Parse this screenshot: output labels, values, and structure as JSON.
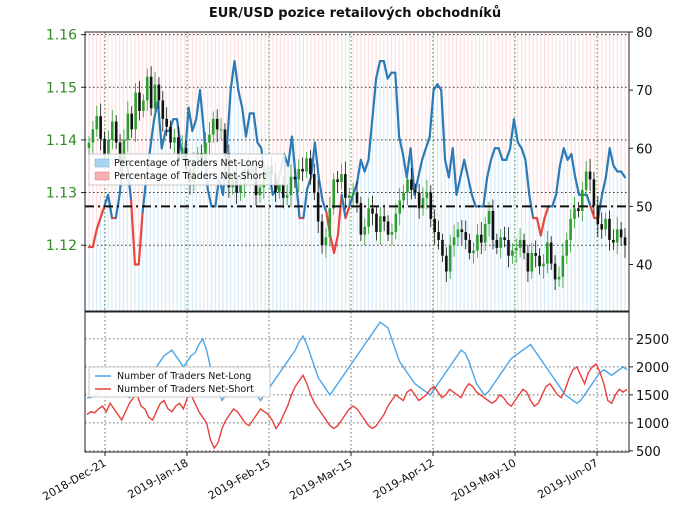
{
  "chart_data": [
    {
      "type": "candlestick",
      "title": "EUR/USD pozice retailových obchodníků",
      "y_left_ticks": [
        "1.12",
        "1.13",
        "1.14",
        "1.15",
        "1.16"
      ],
      "y_left_range": [
        1.1075,
        1.1605
      ],
      "y_right_ticks": [
        "40",
        "50",
        "60",
        "70",
        "80"
      ],
      "y_right_range": [
        32,
        80
      ],
      "reference_line": 50,
      "grid": true,
      "legend": {
        "placement": "center-left",
        "entries": [
          {
            "label": "Percentage of Traders Net-Long",
            "color": "#aad4f0"
          },
          {
            "label": "Percentage of Traders Net-Short",
            "color": "#f5b3b3"
          }
        ]
      },
      "price_close": [
        1.1395,
        1.142,
        1.1445,
        1.1402,
        1.137,
        1.14,
        1.1435,
        1.1395,
        1.136,
        1.14,
        1.145,
        1.142,
        1.149,
        1.1455,
        1.1475,
        1.152,
        1.146,
        1.1505,
        1.1475,
        1.144,
        1.1425,
        1.1395,
        1.1405,
        1.1365,
        1.1385,
        1.1345,
        1.132,
        1.1355,
        1.1375,
        1.135,
        1.1395,
        1.141,
        1.144,
        1.142,
        1.142,
        1.1375,
        1.131,
        1.133,
        1.13,
        1.1315,
        1.1345,
        1.1335,
        1.135,
        1.1295,
        1.131,
        1.133,
        1.135,
        1.1335,
        1.13,
        1.1315,
        1.129,
        1.1295,
        1.133,
        1.1325,
        1.1345,
        1.134,
        1.1365,
        1.1335,
        1.13,
        1.1245,
        1.12,
        1.1215,
        1.127,
        1.1325,
        1.132,
        1.1335,
        1.129,
        1.1295,
        1.13,
        1.128,
        1.122,
        1.1235,
        1.127,
        1.126,
        1.1225,
        1.1255,
        1.1245,
        1.122,
        1.1225,
        1.126,
        1.1285,
        1.13,
        1.1325,
        1.1305,
        1.13,
        1.127,
        1.129,
        1.13,
        1.125,
        1.1225,
        1.121,
        1.118,
        1.115,
        1.12,
        1.1215,
        1.123,
        1.1225,
        1.121,
        1.1185,
        1.119,
        1.122,
        1.1205,
        1.124,
        1.1265,
        1.121,
        1.1195,
        1.1215,
        1.121,
        1.118,
        1.119,
        1.1195,
        1.121,
        1.1185,
        1.115,
        1.1185,
        1.118,
        1.116,
        1.1165,
        1.1205,
        1.1165,
        1.1135,
        1.114,
        1.118,
        1.121,
        1.125,
        1.127,
        1.1265,
        1.1305,
        1.134,
        1.1325,
        1.1275,
        1.124,
        1.123,
        1.125,
        1.121,
        1.1205,
        1.123,
        1.1215,
        1.12
      ],
      "pct_net_long": [
        43,
        43,
        46,
        48,
        50,
        52,
        48,
        48,
        52,
        59,
        57,
        51,
        40,
        40,
        49,
        55,
        60,
        65,
        68,
        60,
        63,
        63,
        65,
        65,
        60,
        58,
        67,
        63,
        65,
        70,
        63,
        53,
        50,
        50,
        55,
        52,
        60,
        70,
        75,
        70,
        67,
        62,
        66,
        66,
        61,
        60,
        55,
        56,
        52,
        53,
        56,
        59,
        57,
        62,
        55,
        48,
        48,
        53,
        55,
        61,
        55,
        51,
        49,
        45,
        42,
        45,
        52,
        48,
        50,
        52,
        54,
        58,
        56,
        58,
        65,
        72,
        75,
        75,
        72,
        73,
        73,
        62,
        59,
        55,
        60,
        52,
        55,
        58,
        60,
        62,
        70,
        71,
        70,
        58,
        55,
        60,
        52,
        55,
        58,
        55,
        52,
        50,
        50,
        50,
        55,
        58,
        60,
        60,
        58,
        58,
        60,
        65,
        61,
        60,
        58,
        52,
        48,
        48,
        45,
        48,
        50,
        50,
        52,
        57,
        60,
        58,
        59,
        55,
        52,
        52,
        52,
        50,
        48,
        48,
        52,
        55,
        60,
        57,
        56,
        56,
        55
      ],
      "stick_count": 141
    },
    {
      "type": "line",
      "y_right_ticks": [
        "500",
        "1000",
        "1500",
        "2000",
        "2500"
      ],
      "y_range": [
        480,
        2980
      ],
      "x_tick_labels": [
        "2018-Dec-21",
        "2019-Jan-18",
        "2019-Feb-15",
        "2019-Mar-15",
        "2019-Apr-12",
        "2019-May-10",
        "2019-Jun-07"
      ],
      "grid": true,
      "legend": {
        "placement": "center-left",
        "entries": [
          {
            "label": "Number of Traders Net-Long",
            "color": "#4da6e8"
          },
          {
            "label": "Number of Traders Net-Short",
            "color": "#e8403a"
          }
        ]
      },
      "series": [
        {
          "name": "Number of Traders Net-Long",
          "values": [
            1450,
            1450,
            1500,
            1550,
            1600,
            1650,
            1700,
            1650,
            1600,
            1550,
            1500,
            1450,
            1500,
            1550,
            1600,
            1700,
            1800,
            1900,
            2000,
            2100,
            2200,
            2250,
            2300,
            2200,
            2100,
            2000,
            2100,
            2200,
            2250,
            2400,
            2500,
            2300,
            2000,
            1800,
            1600,
            1400,
            1500,
            1700,
            1900,
            2000,
            1900,
            1800,
            1700,
            1600,
            1500,
            1400,
            1500,
            1600,
            1700,
            1800,
            1900,
            2000,
            2100,
            2200,
            2300,
            2450,
            2550,
            2400,
            2200,
            2000,
            1800,
            1700,
            1600,
            1500,
            1600,
            1700,
            1800,
            1900,
            2000,
            2100,
            2200,
            2300,
            2400,
            2500,
            2600,
            2700,
            2800,
            2750,
            2700,
            2500,
            2300,
            2100,
            2000,
            1900,
            1800,
            1700,
            1650,
            1600,
            1550,
            1500,
            1600,
            1700,
            1800,
            1900,
            2000,
            2100,
            2200,
            2300,
            2250,
            2100,
            1900,
            1700,
            1600,
            1500,
            1550,
            1650,
            1750,
            1850,
            1950,
            2050,
            2150,
            2200,
            2250,
            2300,
            2350,
            2400,
            2300,
            2200,
            2100,
            2000,
            1900,
            1800,
            1700,
            1600,
            1500,
            1450,
            1400,
            1350,
            1400,
            1500,
            1600,
            1700,
            1800,
            1900,
            1950,
            1900,
            1850,
            1900,
            1950,
            2000,
            1950
          ]
        },
        {
          "name": "Number of Traders Net-Short",
          "values": [
            1150,
            1200,
            1180,
            1250,
            1300,
            1200,
            1350,
            1250,
            1150,
            1050,
            1200,
            1350,
            1450,
            1500,
            1300,
            1250,
            1100,
            1050,
            1200,
            1350,
            1400,
            1250,
            1200,
            1300,
            1350,
            1250,
            1450,
            1500,
            1350,
            1200,
            1100,
            1000,
            700,
            550,
            650,
            900,
            1050,
            1150,
            1250,
            1200,
            1100,
            1000,
            950,
            1050,
            1150,
            1250,
            1200,
            1150,
            1050,
            900,
            1000,
            1150,
            1300,
            1500,
            1650,
            1750,
            1850,
            1700,
            1500,
            1350,
            1250,
            1150,
            1050,
            950,
            900,
            950,
            1050,
            1150,
            1250,
            1300,
            1250,
            1150,
            1050,
            950,
            900,
            950,
            1050,
            1150,
            1300,
            1400,
            1500,
            1450,
            1400,
            1550,
            1600,
            1500,
            1400,
            1450,
            1500,
            1600,
            1650,
            1550,
            1450,
            1500,
            1600,
            1550,
            1500,
            1450,
            1600,
            1700,
            1650,
            1550,
            1500,
            1450,
            1400,
            1350,
            1400,
            1500,
            1450,
            1350,
            1300,
            1400,
            1500,
            1600,
            1550,
            1400,
            1300,
            1350,
            1500,
            1650,
            1700,
            1600,
            1500,
            1450,
            1600,
            1800,
            1950,
            2000,
            1850,
            1700,
            1900,
            2000,
            2050,
            1900,
            1700,
            1400,
            1350,
            1500,
            1600,
            1550,
            1600
          ]
        }
      ]
    }
  ]
}
